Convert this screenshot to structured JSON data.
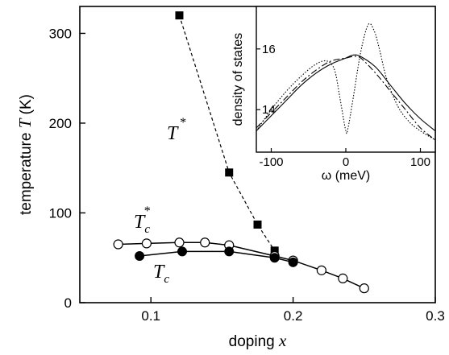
{
  "chart_data": [
    {
      "type": "line",
      "xlabel_prefix": "doping",
      "xlabel_var": "x",
      "ylabel_prefix": "temperature",
      "ylabel_var": "T",
      "ylabel_unit": "(K)",
      "xlim": [
        0.05,
        0.3
      ],
      "ylim": [
        0,
        330
      ],
      "xticks": [
        "0.1",
        "0.2",
        "0.3"
      ],
      "yticks": [
        "0",
        "100",
        "200",
        "300"
      ],
      "xtick_values": [
        0.1,
        0.2,
        0.3
      ],
      "ytick_values": [
        0,
        100,
        200,
        300
      ],
      "series": [
        {
          "name": "T*",
          "label_main": "T",
          "label_sup": "*",
          "marker": "filled-square",
          "line": "dashed",
          "x": [
            0.12,
            0.155,
            0.175,
            0.187
          ],
          "y": [
            320,
            145,
            87,
            58
          ]
        },
        {
          "name": "Tc*",
          "label_main": "T",
          "label_sub": "c",
          "label_sup": "*",
          "marker": "open-circle",
          "line": "solid",
          "x": [
            0.077,
            0.097,
            0.12,
            0.138,
            0.155,
            0.187,
            0.2,
            0.22,
            0.235,
            0.25
          ],
          "y": [
            65,
            66,
            67,
            67,
            64,
            52,
            47,
            36,
            27,
            16
          ]
        },
        {
          "name": "Tc",
          "label_main": "T",
          "label_sub": "c",
          "marker": "filled-circle",
          "line": "solid",
          "x": [
            0.092,
            0.122,
            0.155,
            0.187,
            0.2
          ],
          "y": [
            52,
            57,
            57,
            50,
            45
          ]
        }
      ]
    },
    {
      "type": "line",
      "inset": true,
      "xlabel": "ω (meV)",
      "ylabel": "density of states",
      "xlim": [
        -120,
        120
      ],
      "ylim": [
        12.6,
        17.4
      ],
      "xticks": [
        "-100",
        "0",
        "100"
      ],
      "yticks": [
        "14",
        "16"
      ],
      "xtick_values": [
        -100,
        0,
        100
      ],
      "ytick_values": [
        14,
        16
      ],
      "series": [
        {
          "line": "solid",
          "x": [
            -120,
            -100,
            -80,
            -60,
            -40,
            -20,
            0,
            10,
            20,
            40,
            60,
            80,
            100,
            120
          ],
          "y": [
            13.3,
            13.8,
            14.3,
            14.8,
            15.2,
            15.5,
            15.7,
            15.8,
            15.75,
            15.4,
            14.8,
            14.2,
            13.7,
            13.3
          ]
        },
        {
          "line": "dashed",
          "x": [
            -120,
            -100,
            -80,
            -60,
            -40,
            -20,
            0,
            10,
            20,
            40,
            60,
            80,
            100,
            120
          ],
          "y": [
            13.4,
            13.9,
            14.4,
            14.9,
            15.3,
            15.6,
            15.7,
            15.75,
            15.7,
            15.2,
            14.6,
            14.0,
            13.4,
            13.0
          ]
        },
        {
          "line": "dotted",
          "x": [
            -120,
            -100,
            -80,
            -60,
            -40,
            -25,
            -15,
            -8,
            0,
            3,
            10,
            20,
            30,
            38,
            45,
            55,
            70,
            85,
            100,
            120
          ],
          "y": [
            13.3,
            14.0,
            14.6,
            15.1,
            15.5,
            15.6,
            15.3,
            14.4,
            13.3,
            13.4,
            14.4,
            15.9,
            16.8,
            16.6,
            16.0,
            15.0,
            14.1,
            13.6,
            13.3,
            13.0
          ]
        }
      ]
    }
  ]
}
